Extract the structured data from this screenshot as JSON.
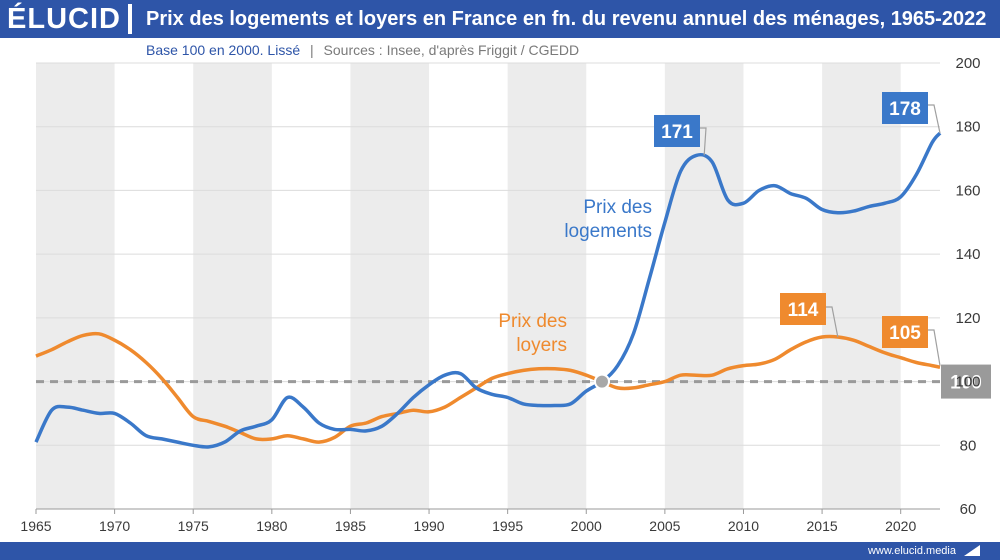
{
  "header": {
    "logo": "ÉLUCID",
    "title": "Prix des logements et loyers en France en fn. du revenu annuel des ménages, 1965-2022",
    "subtitle_base": "Base 100 en 2000. Lissé",
    "subtitle_sep": "|",
    "subtitle_sources": "Sources : Insee, d'après Friggit / CGEDD"
  },
  "footer": {
    "url": "www.elucid.media"
  },
  "colors": {
    "brand": "#2e55a8",
    "logements": "#3a78c9",
    "loyers": "#ef8a2e",
    "reference": "#9a9a9a"
  },
  "chart_data": {
    "type": "line",
    "title": "Prix des logements et loyers en France en fn. du revenu annuel des ménages, 1965-2022",
    "subtitle": "Base 100 en 2000. Lissé",
    "xlabel": "",
    "ylabel": "",
    "xlim": [
      1965,
      2022.5
    ],
    "ylim": [
      60,
      200
    ],
    "x_ticks": [
      1965,
      1970,
      1975,
      1980,
      1985,
      1990,
      1995,
      2000,
      2005,
      2010,
      2015,
      2020
    ],
    "y_ticks": [
      60,
      80,
      100,
      120,
      140,
      160,
      180,
      200
    ],
    "y_axis_side": "right",
    "grid": true,
    "alternating_bands": true,
    "reference_line": {
      "value": 100,
      "label": "100"
    },
    "marker": {
      "x": 2001,
      "y": 100
    },
    "series": [
      {
        "name": "Prix des logements",
        "label_lines": [
          "Prix des",
          "logements"
        ],
        "color": "#3a78c9",
        "points": [
          [
            1965,
            81
          ],
          [
            1966,
            91
          ],
          [
            1967,
            92
          ],
          [
            1968,
            91
          ],
          [
            1969,
            90
          ],
          [
            1970,
            90
          ],
          [
            1971,
            87
          ],
          [
            1972,
            83
          ],
          [
            1973,
            82
          ],
          [
            1974,
            81
          ],
          [
            1975,
            80
          ],
          [
            1976,
            79.5
          ],
          [
            1977,
            81
          ],
          [
            1978,
            84.5
          ],
          [
            1979,
            86
          ],
          [
            1980,
            88
          ],
          [
            1981,
            95
          ],
          [
            1982,
            92
          ],
          [
            1983,
            87
          ],
          [
            1984,
            85
          ],
          [
            1985,
            85
          ],
          [
            1986,
            84.5
          ],
          [
            1987,
            86
          ],
          [
            1988,
            90
          ],
          [
            1989,
            95
          ],
          [
            1990,
            99
          ],
          [
            1991,
            102
          ],
          [
            1992,
            102.5
          ],
          [
            1993,
            98
          ],
          [
            1994,
            96
          ],
          [
            1995,
            95
          ],
          [
            1996,
            93
          ],
          [
            1997,
            92.5
          ],
          [
            1998,
            92.5
          ],
          [
            1999,
            93
          ],
          [
            2000,
            97
          ],
          [
            2001,
            100
          ],
          [
            2002,
            105
          ],
          [
            2003,
            115
          ],
          [
            2004,
            132
          ],
          [
            2005,
            150
          ],
          [
            2006,
            166
          ],
          [
            2007,
            171
          ],
          [
            2008,
            169
          ],
          [
            2009,
            157
          ],
          [
            2010,
            156
          ],
          [
            2011,
            160
          ],
          [
            2012,
            161.5
          ],
          [
            2013,
            159
          ],
          [
            2014,
            157.5
          ],
          [
            2015,
            154
          ],
          [
            2016,
            153
          ],
          [
            2017,
            153.5
          ],
          [
            2018,
            155
          ],
          [
            2019,
            156
          ],
          [
            2020,
            158
          ],
          [
            2021,
            165
          ],
          [
            2022,
            175
          ],
          [
            2022.5,
            178
          ]
        ],
        "callouts": [
          {
            "x": 2007.5,
            "y": 171,
            "label": "171"
          },
          {
            "x": 2022.5,
            "y": 178,
            "label": "178"
          }
        ]
      },
      {
        "name": "Prix des loyers",
        "label_lines": [
          "Prix des",
          "loyers"
        ],
        "color": "#ef8a2e",
        "points": [
          [
            1965,
            108
          ],
          [
            1966,
            110
          ],
          [
            1967,
            112.5
          ],
          [
            1968,
            114.5
          ],
          [
            1969,
            115
          ],
          [
            1970,
            113
          ],
          [
            1971,
            110
          ],
          [
            1972,
            106
          ],
          [
            1973,
            101
          ],
          [
            1974,
            95
          ],
          [
            1975,
            89
          ],
          [
            1976,
            87.5
          ],
          [
            1977,
            86
          ],
          [
            1978,
            84
          ],
          [
            1979,
            82
          ],
          [
            1980,
            82
          ],
          [
            1981,
            83
          ],
          [
            1982,
            82
          ],
          [
            1983,
            81
          ],
          [
            1984,
            82.5
          ],
          [
            1985,
            86
          ],
          [
            1986,
            87
          ],
          [
            1987,
            89
          ],
          [
            1988,
            90
          ],
          [
            1989,
            91
          ],
          [
            1990,
            90.5
          ],
          [
            1991,
            92
          ],
          [
            1992,
            95
          ],
          [
            1993,
            98
          ],
          [
            1994,
            101
          ],
          [
            1995,
            102.5
          ],
          [
            1996,
            103.5
          ],
          [
            1997,
            104
          ],
          [
            1998,
            104
          ],
          [
            1999,
            103.5
          ],
          [
            2000,
            102
          ],
          [
            2001,
            100
          ],
          [
            2002,
            98
          ],
          [
            2003,
            98
          ],
          [
            2004,
            99
          ],
          [
            2005,
            100
          ],
          [
            2006,
            102
          ],
          [
            2007,
            102
          ],
          [
            2008,
            102
          ],
          [
            2009,
            104
          ],
          [
            2010,
            105
          ],
          [
            2011,
            105.5
          ],
          [
            2012,
            107
          ],
          [
            2013,
            110
          ],
          [
            2014,
            112.5
          ],
          [
            2015,
            114
          ],
          [
            2016,
            114
          ],
          [
            2017,
            113
          ],
          [
            2018,
            111
          ],
          [
            2019,
            109
          ],
          [
            2020,
            107.5
          ],
          [
            2021,
            106
          ],
          [
            2022,
            105
          ],
          [
            2022.5,
            104.5
          ]
        ],
        "callouts": [
          {
            "x": 2016,
            "y": 114,
            "label": "114"
          },
          {
            "x": 2022.5,
            "y": 105,
            "label": "105"
          }
        ]
      }
    ]
  }
}
